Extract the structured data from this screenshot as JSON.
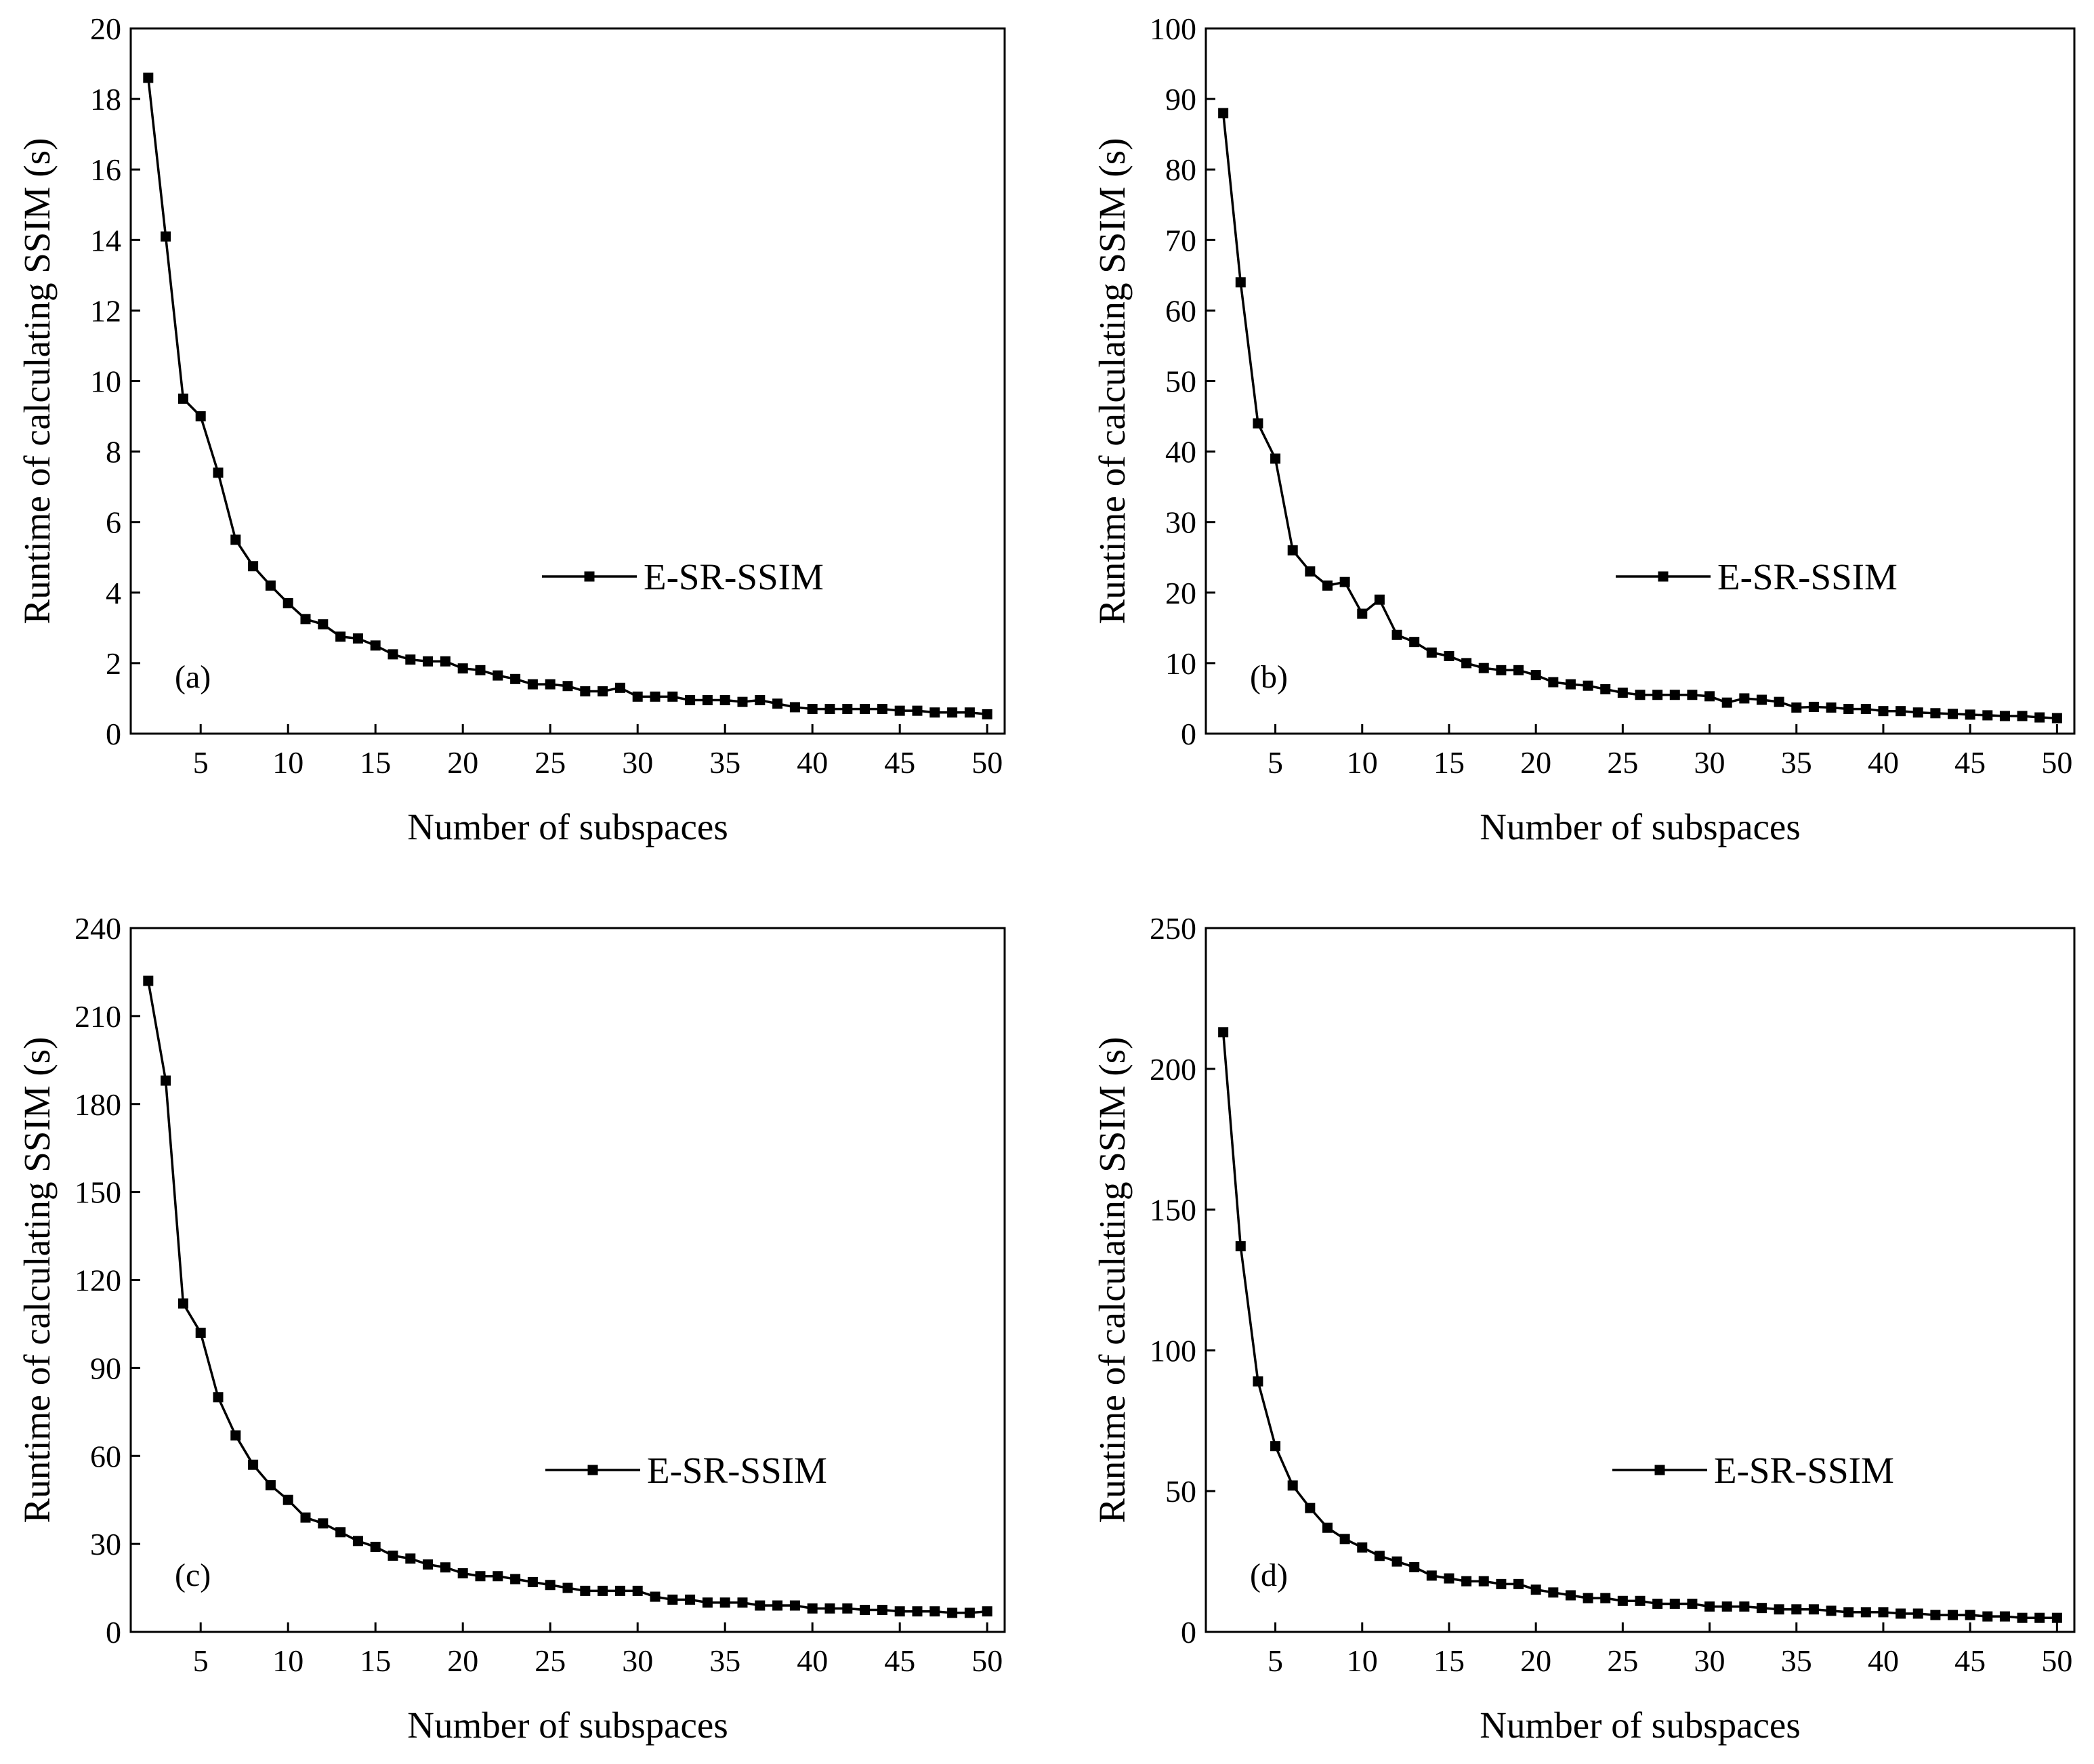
{
  "chart_data": [
    {
      "type": "line",
      "panel_label": "(a)",
      "xlabel": "Number of subspaces",
      "ylabel": "Runtime of calculating SSIM (s)",
      "xlim": [
        1,
        51
      ],
      "ylim": [
        0,
        20
      ],
      "xticks": [
        5,
        10,
        15,
        20,
        25,
        30,
        35,
        40,
        45,
        50
      ],
      "yticks": [
        0,
        2,
        4,
        6,
        8,
        10,
        12,
        14,
        16,
        18,
        20
      ],
      "x": [
        2,
        3,
        4,
        5,
        6,
        7,
        8,
        9,
        10,
        11,
        12,
        13,
        14,
        15,
        16,
        17,
        18,
        19,
        20,
        21,
        22,
        23,
        24,
        25,
        26,
        27,
        28,
        29,
        30,
        31,
        32,
        33,
        34,
        35,
        36,
        37,
        38,
        39,
        40,
        41,
        42,
        43,
        44,
        45,
        46,
        47,
        48,
        49,
        50
      ],
      "series": [
        {
          "name": "E-SR-SSIM",
          "marker": "square",
          "values": [
            18.6,
            14.1,
            9.5,
            9.0,
            7.4,
            5.5,
            4.75,
            4.2,
            3.7,
            3.25,
            3.1,
            2.75,
            2.7,
            2.5,
            2.25,
            2.1,
            2.05,
            2.05,
            1.85,
            1.8,
            1.65,
            1.55,
            1.4,
            1.4,
            1.35,
            1.2,
            1.2,
            1.3,
            1.05,
            1.05,
            1.05,
            0.95,
            0.95,
            0.95,
            0.9,
            0.95,
            0.85,
            0.75,
            0.7,
            0.7,
            0.7,
            0.7,
            0.7,
            0.65,
            0.65,
            0.6,
            0.6,
            0.6,
            0.55
          ]
        }
      ],
      "legend": "right"
    },
    {
      "type": "line",
      "panel_label": "(b)",
      "xlabel": "Number of subspaces",
      "ylabel": "Runtime of calculating SSIM (s)",
      "xlim": [
        1,
        51
      ],
      "ylim": [
        0,
        100
      ],
      "xticks": [
        5,
        10,
        15,
        20,
        25,
        30,
        35,
        40,
        45,
        50
      ],
      "yticks": [
        0,
        10,
        20,
        30,
        40,
        50,
        60,
        70,
        80,
        90,
        100
      ],
      "x": [
        2,
        3,
        4,
        5,
        6,
        7,
        8,
        9,
        10,
        11,
        12,
        13,
        14,
        15,
        16,
        17,
        18,
        19,
        20,
        21,
        22,
        23,
        24,
        25,
        26,
        27,
        28,
        29,
        30,
        31,
        32,
        33,
        34,
        35,
        36,
        37,
        38,
        39,
        40,
        41,
        42,
        43,
        44,
        45,
        46,
        47,
        48,
        49,
        50
      ],
      "series": [
        {
          "name": "E-SR-SSIM",
          "marker": "square",
          "values": [
            88,
            64,
            44,
            39,
            26,
            23,
            21,
            21.5,
            17,
            19,
            14,
            13,
            11.5,
            11,
            10,
            9.3,
            9,
            9,
            8.3,
            7.3,
            7,
            6.8,
            6.3,
            5.8,
            5.5,
            5.5,
            5.5,
            5.5,
            5.3,
            4.4,
            5,
            4.8,
            4.5,
            3.7,
            3.8,
            3.7,
            3.5,
            3.5,
            3.2,
            3.2,
            3,
            2.9,
            2.8,
            2.7,
            2.6,
            2.5,
            2.5,
            2.3,
            2.2
          ]
        }
      ],
      "legend": "right"
    },
    {
      "type": "line",
      "panel_label": "(c)",
      "xlabel": "Number of subspaces",
      "ylabel": "Runtime of calculating SSIM (s)",
      "xlim": [
        1,
        51
      ],
      "ylim": [
        0,
        240
      ],
      "xticks": [
        5,
        10,
        15,
        20,
        25,
        30,
        35,
        40,
        45,
        50
      ],
      "yticks": [
        0,
        30,
        60,
        90,
        120,
        150,
        180,
        210,
        240
      ],
      "x": [
        2,
        3,
        4,
        5,
        6,
        7,
        8,
        9,
        10,
        11,
        12,
        13,
        14,
        15,
        16,
        17,
        18,
        19,
        20,
        21,
        22,
        23,
        24,
        25,
        26,
        27,
        28,
        29,
        30,
        31,
        32,
        33,
        34,
        35,
        36,
        37,
        38,
        39,
        40,
        41,
        42,
        43,
        44,
        45,
        46,
        47,
        48,
        49,
        50
      ],
      "series": [
        {
          "name": "E-SR-SSIM",
          "marker": "square",
          "values": [
            222,
            188,
            112,
            102,
            80,
            67,
            57,
            50,
            45,
            39,
            37,
            34,
            31,
            29,
            26,
            25,
            23,
            22,
            20,
            19,
            19,
            18,
            17,
            16,
            15,
            14,
            14,
            14,
            14,
            12,
            11,
            11,
            10,
            10,
            10,
            9,
            9,
            9,
            8,
            8,
            8,
            7.5,
            7.5,
            7,
            7,
            7,
            6.5,
            6.5,
            7
          ]
        }
      ],
      "legend": "right"
    },
    {
      "type": "line",
      "panel_label": "(d)",
      "xlabel": "Number of subspaces",
      "ylabel": "Runtime of calculating SSIM (s)",
      "xlim": [
        1,
        51
      ],
      "ylim": [
        0,
        250
      ],
      "xticks": [
        5,
        10,
        15,
        20,
        25,
        30,
        35,
        40,
        45,
        50
      ],
      "yticks": [
        0,
        50,
        100,
        150,
        200,
        250
      ],
      "x": [
        2,
        3,
        4,
        5,
        6,
        7,
        8,
        9,
        10,
        11,
        12,
        13,
        14,
        15,
        16,
        17,
        18,
        19,
        20,
        21,
        22,
        23,
        24,
        25,
        26,
        27,
        28,
        29,
        30,
        31,
        32,
        33,
        34,
        35,
        36,
        37,
        38,
        39,
        40,
        41,
        42,
        43,
        44,
        45,
        46,
        47,
        48,
        49,
        50
      ],
      "series": [
        {
          "name": "E-SR-SSIM",
          "marker": "square",
          "values": [
            213,
            137,
            89,
            66,
            52,
            44,
            37,
            33,
            30,
            27,
            25,
            23,
            20,
            19,
            18,
            18,
            17,
            17,
            15,
            14,
            13,
            12,
            12,
            11,
            11,
            10,
            10,
            10,
            9,
            9,
            9,
            8.5,
            8,
            8,
            8,
            7.5,
            7,
            7,
            7,
            6.5,
            6.5,
            6,
            6,
            6,
            5.5,
            5.5,
            5,
            5,
            5
          ]
        }
      ],
      "legend": "right"
    }
  ]
}
